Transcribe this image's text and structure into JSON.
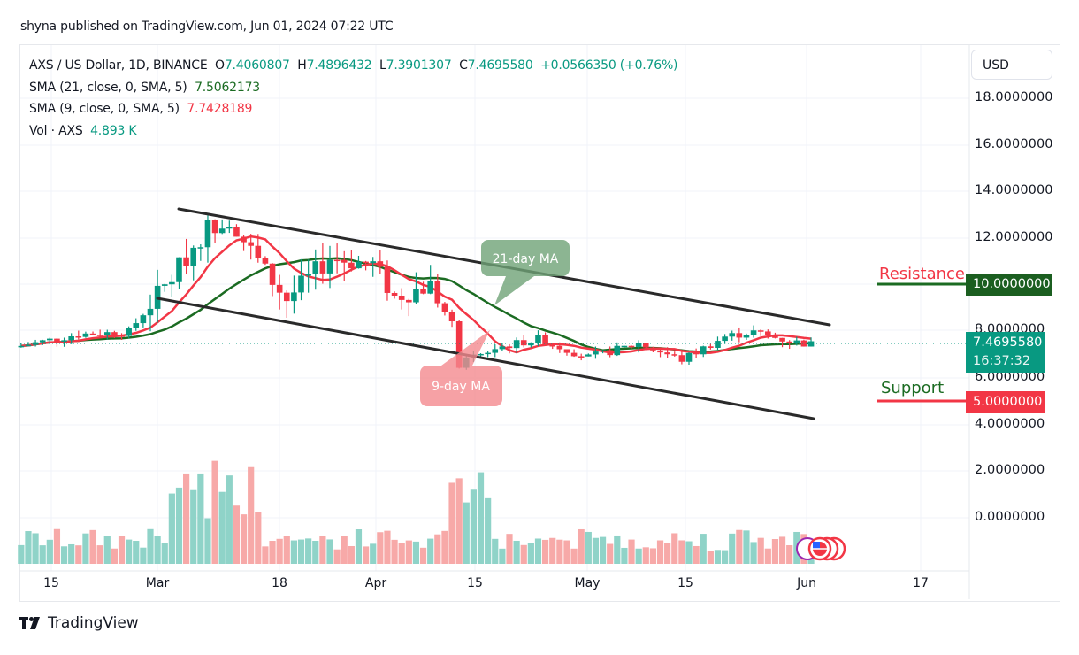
{
  "header": {
    "published": "shyna published on TradingView.com, Jun 01, 2024 07:22 UTC"
  },
  "legend": {
    "symbol": "AXS / US Dollar, 1D, BINANCE",
    "o_label": "O",
    "open": "7.4060807",
    "h_label": "H",
    "high": "7.4896432",
    "l_label": "L",
    "low": "7.3901307",
    "c_label": "C",
    "close": "7.4695580",
    "change": "+0.0566350 (+0.76%)",
    "sma21_label": "SMA (21, close, 0, SMA, 5)",
    "sma21_value": "7.5062173",
    "sma9_label": "SMA (9, close, 0, SMA, 5)",
    "sma9_value": "7.7428189",
    "vol_label": "Vol · AXS",
    "vol_value": "4.893 K"
  },
  "price_axis": {
    "currency": "USD",
    "ticks": [
      "18.0000000",
      "16.0000000",
      "14.0000000",
      "12.0000000",
      "8.0000000",
      "6.0000000",
      "4.0000000",
      "2.0000000",
      "0.0000000"
    ],
    "current_price": "7.4695580",
    "countdown": "16:37:32",
    "resistance_value": "10.0000000",
    "support_value": "5.0000000"
  },
  "annotations": {
    "resistance_label": "Resistance",
    "support_label": "Support",
    "ma21_callout": "21-day MA",
    "ma9_callout": "9-day MA"
  },
  "time_axis": {
    "labels": [
      "15",
      "Mar",
      "18",
      "Apr",
      "15",
      "May",
      "15",
      "Jun",
      "17"
    ]
  },
  "footer": {
    "brand": "TradingView"
  },
  "colors": {
    "up": "#089981",
    "down": "#f23645",
    "sma21": "#1b6b22",
    "sma9": "#f23645",
    "resistance_tag": "#1b5e20",
    "support_tag": "#f23645",
    "price_tag": "#089981",
    "vol_up": "#8fd3c8",
    "vol_down": "#f7a9a8",
    "channel": "#2a2a2a"
  },
  "chart_data": {
    "type": "candlestick",
    "title": "AXS / US Dollar, 1D, BINANCE",
    "xlabel": "",
    "ylabel": "USD",
    "ylim": [
      0,
      19
    ],
    "x_ticks": [
      "Feb 15",
      "Mar",
      "Mar 18",
      "Apr",
      "Apr 15",
      "May",
      "May 15",
      "Jun",
      "Jun 17"
    ],
    "last": {
      "open": 7.4060807,
      "high": 7.4896432,
      "low": 7.3901307,
      "close": 7.469558,
      "change": 0.056635,
      "change_pct": 0.76
    },
    "series": [
      {
        "name": "SMA 21",
        "last": 7.5062173
      },
      {
        "name": "SMA 9",
        "last": 7.7428189
      },
      {
        "name": "Volume",
        "last": "4.893K"
      }
    ],
    "levels": [
      {
        "name": "Resistance",
        "value": 10.0
      },
      {
        "name": "Support",
        "value": 5.0
      }
    ],
    "channel": {
      "upper": [
        {
          "date": "Mar 5",
          "price": 13.3
        },
        {
          "date": "Jun 3",
          "price": 8.3
        }
      ],
      "lower": [
        {
          "date": "Mar 4",
          "price": 9.4
        },
        {
          "date": "Jun 2",
          "price": 4.3
        }
      ]
    },
    "approx_closes": {
      "Feb 12": 7.4,
      "Feb 20": 7.9,
      "Feb 27": 8.0,
      "Mar 1": 9.2,
      "Mar 5": 10.8,
      "Mar 9": 12.5,
      "Mar 12": 12.9,
      "Mar 16": 11.0,
      "Mar 20": 9.4,
      "Mar 26": 11.2,
      "Apr 1": 10.9,
      "Apr 4": 9.5,
      "Apr 9": 10.0,
      "Apr 12": 8.3,
      "Apr 13": 6.6,
      "Apr 18": 7.3,
      "Apr 24": 7.7,
      "May 1": 6.9,
      "May 8": 7.5,
      "May 14": 6.8,
      "May 20": 7.8,
      "May 24": 8.0,
      "May 29": 7.6,
      "Jun 1": 7.47
    }
  }
}
